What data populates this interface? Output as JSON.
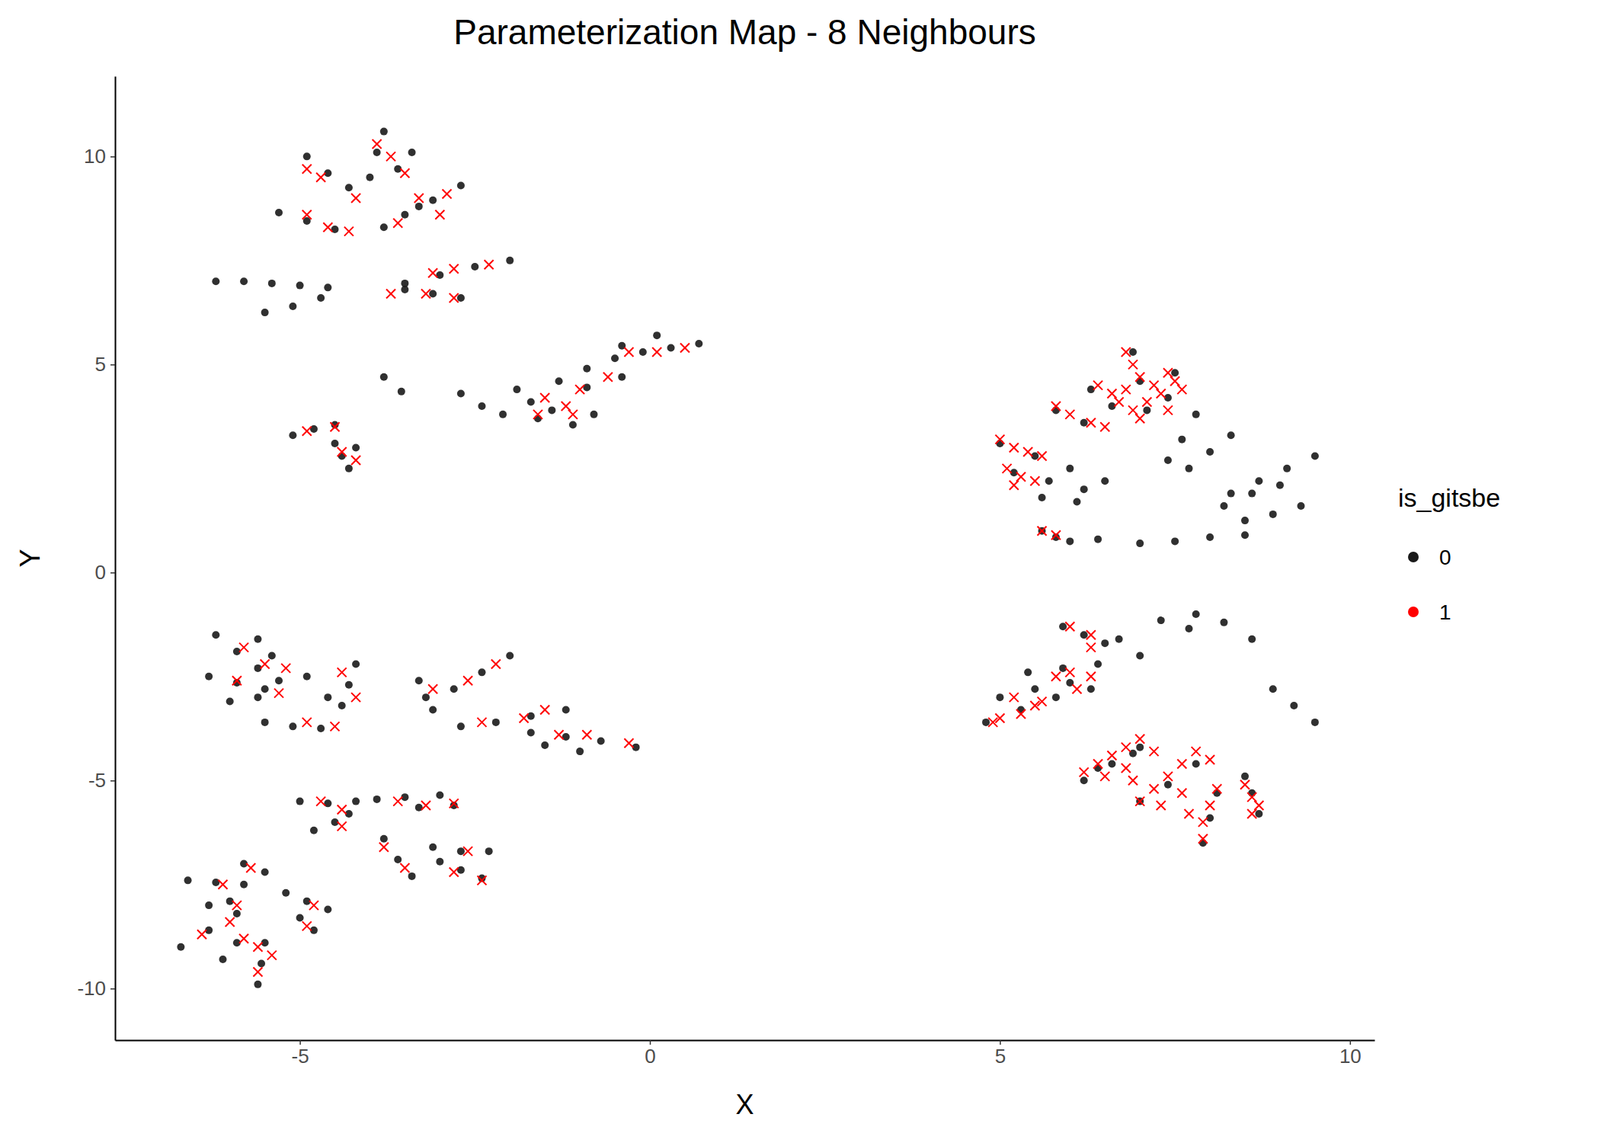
{
  "chart_data": {
    "type": "scatter",
    "title": "Parameterization Map - 8 Neighbours",
    "x_label": "X",
    "y_label": "Y",
    "legend_title": "is_gitsbe",
    "legend": "right",
    "grid": false,
    "xlim": [
      -7.64,
      10.35
    ],
    "ylim": [
      -11.24,
      11.93
    ],
    "xticks": [
      -5,
      0,
      5,
      10
    ],
    "yticks": [
      -10,
      -5,
      0,
      5,
      10
    ],
    "series": [
      {
        "name": "0",
        "color": "#1a1a1a",
        "marker": "circle",
        "x": [
          -6.2,
          -5.8,
          -5.4,
          -5.0,
          -4.6,
          -5.5,
          -5.1,
          -4.7,
          -5.3,
          -4.9,
          -4.5,
          -4.9,
          -4.6,
          -4.3,
          -3.8,
          -3.9,
          -4.0,
          -3.4,
          -3.6,
          -2.7,
          -3.1,
          -3.5,
          -3.3,
          -3.8,
          -2.0,
          -2.5,
          -3.0,
          -3.5,
          -2.7,
          -3.1,
          -3.5,
          -5.1,
          -4.8,
          -4.5,
          -4.4,
          -4.2,
          -4.3,
          -4.5,
          -3.8,
          -3.55,
          -2.7,
          -2.4,
          -2.1,
          0.7,
          0.3,
          -0.1,
          -0.5,
          -0.9,
          -1.3,
          0.1,
          -0.4,
          -0.4,
          -0.9,
          -0.8,
          -1.1,
          -1.4,
          -1.7,
          -1.6,
          -1.9,
          -6.2,
          -5.9,
          -5.6,
          -5.3,
          -6.3,
          -5.9,
          -5.5,
          -5.6,
          -5.4,
          -6.0,
          -5.6,
          -5.5,
          -5.1,
          -4.7,
          -4.2,
          -4.3,
          -4.4,
          -4.9,
          -4.6,
          -3.3,
          -3.2,
          -3.1,
          -2.0,
          -2.4,
          -2.8,
          -1.2,
          -1.7,
          -2.2,
          -2.7,
          -0.2,
          -0.7,
          -1.2,
          -1.7,
          -1.0,
          -1.5,
          -5.0,
          -4.6,
          -4.2,
          -4.8,
          -4.5,
          -4.3,
          -3.0,
          -3.5,
          -3.9,
          -2.8,
          -3.3,
          -3.8,
          -3.6,
          -3.4,
          -2.3,
          -2.7,
          -3.1,
          -2.4,
          -2.7,
          -3.0,
          -6.7,
          -6.3,
          -5.9,
          -6.6,
          -6.2,
          -5.8,
          -5.8,
          -5.5,
          -5.6,
          -5.55,
          -5.5,
          -4.6,
          -4.9,
          -5.2,
          -4.8,
          -5.0,
          -6.1,
          -5.9,
          -6.3,
          -6.0,
          9.5,
          9.1,
          8.7,
          8.3,
          9.0,
          8.6,
          8.2,
          8.3,
          8.0,
          7.7,
          7.8,
          7.6,
          7.4,
          9.3,
          8.9,
          8.5,
          8.5,
          8.0,
          7.5,
          7.0,
          6.0,
          6.4,
          5.0,
          5.5,
          6.0,
          6.5,
          5.2,
          5.7,
          6.2,
          5.6,
          6.1,
          6.9,
          7.0,
          7.1,
          7.5,
          7.4,
          6.3,
          6.6,
          5.8,
          6.2,
          5.6,
          5.8,
          5.9,
          6.2,
          6.5,
          7.8,
          8.2,
          8.6,
          7.3,
          7.7,
          9.5,
          9.2,
          8.9,
          4.8,
          5.3,
          5.8,
          6.3,
          5.0,
          5.5,
          6.0,
          5.4,
          5.9,
          6.4,
          6.2,
          6.6,
          7.0,
          6.4,
          6.9,
          7.0,
          7.4,
          7.8,
          7.9,
          8.0,
          8.1,
          8.7,
          8.6,
          8.5,
          6.7,
          7.0
        ],
        "values": [
          7.0,
          7.0,
          6.95,
          6.9,
          6.85,
          6.25,
          6.4,
          6.6,
          8.65,
          8.45,
          8.25,
          10.0,
          9.6,
          9.25,
          10.6,
          10.1,
          9.5,
          10.1,
          9.7,
          9.3,
          8.95,
          8.6,
          8.8,
          8.3,
          7.5,
          7.35,
          7.15,
          6.95,
          6.6,
          6.7,
          6.8,
          3.3,
          3.45,
          3.55,
          2.8,
          3.0,
          2.5,
          3.1,
          4.7,
          4.35,
          4.3,
          4.0,
          3.8,
          5.5,
          5.4,
          5.3,
          5.15,
          4.9,
          4.6,
          5.7,
          5.45,
          4.7,
          4.45,
          3.8,
          3.55,
          3.9,
          4.1,
          3.7,
          4.4,
          -1.5,
          -1.9,
          -2.3,
          -2.6,
          -2.5,
          -2.65,
          -2.8,
          -1.6,
          -2.0,
          -3.1,
          -3.0,
          -3.6,
          -3.7,
          -3.75,
          -2.2,
          -2.7,
          -3.2,
          -2.5,
          -3.0,
          -2.6,
          -3.0,
          -3.3,
          -2.0,
          -2.4,
          -2.8,
          -3.3,
          -3.45,
          -3.6,
          -3.7,
          -4.2,
          -4.05,
          -3.95,
          -3.85,
          -4.3,
          -4.15,
          -5.5,
          -5.55,
          -5.5,
          -6.2,
          -6.0,
          -5.8,
          -5.35,
          -5.4,
          -5.45,
          -5.6,
          -5.65,
          -6.4,
          -6.9,
          -7.3,
          -6.7,
          -6.7,
          -6.6,
          -7.35,
          -7.15,
          -6.95,
          -9.0,
          -8.6,
          -8.2,
          -7.4,
          -7.45,
          -7.5,
          -7.0,
          -7.2,
          -9.9,
          -9.4,
          -8.9,
          -8.1,
          -7.9,
          -7.7,
          -8.6,
          -8.3,
          -9.3,
          -8.9,
          -8.0,
          -7.9,
          2.8,
          2.5,
          2.2,
          1.9,
          2.1,
          1.9,
          1.6,
          3.3,
          2.9,
          2.5,
          3.8,
          3.2,
          2.7,
          1.6,
          1.4,
          1.25,
          0.9,
          0.85,
          0.75,
          0.7,
          0.75,
          0.8,
          3.1,
          2.8,
          2.5,
          2.2,
          2.4,
          2.2,
          2.0,
          1.8,
          1.7,
          5.3,
          4.6,
          3.9,
          4.8,
          4.2,
          4.4,
          4.0,
          3.9,
          3.6,
          1.0,
          0.85,
          -1.3,
          -1.5,
          -1.7,
          -1.0,
          -1.2,
          -1.6,
          -1.15,
          -1.35,
          -3.6,
          -3.2,
          -2.8,
          -3.6,
          -3.3,
          -3.0,
          -2.8,
          -3.0,
          -2.8,
          -2.65,
          -2.4,
          -2.3,
          -2.2,
          -5.0,
          -4.6,
          -4.2,
          -4.7,
          -4.35,
          -5.5,
          -5.1,
          -4.6,
          -6.5,
          -5.9,
          -5.3,
          -5.8,
          -5.3,
          -4.9,
          -1.6,
          -2.0
        ]
      },
      {
        "name": "1",
        "color": "#ff0000",
        "marker": "x",
        "x": [
          -4.9,
          -4.7,
          -4.2,
          -3.9,
          -3.7,
          -3.5,
          -3.3,
          -2.9,
          -3.0,
          -3.6,
          -4.9,
          -4.6,
          -4.3,
          -2.3,
          -2.8,
          -3.1,
          -2.8,
          -3.2,
          -3.7,
          -4.9,
          -4.5,
          -4.4,
          -4.2,
          0.5,
          0.1,
          -0.3,
          -0.6,
          -1.0,
          -1.1,
          -1.5,
          -1.6,
          -1.2,
          -5.8,
          -5.5,
          -5.2,
          -5.9,
          -5.3,
          -4.9,
          -4.5,
          -4.4,
          -4.2,
          -3.1,
          -2.2,
          -2.6,
          -1.8,
          -2.4,
          -1.3,
          -0.9,
          -0.3,
          -1.5,
          -4.7,
          -4.4,
          -4.4,
          -3.6,
          -3.2,
          -2.8,
          -3.8,
          -3.5,
          -2.6,
          -2.8,
          -2.4,
          -6.4,
          -6.0,
          -5.9,
          -6.1,
          -5.7,
          -5.6,
          -5.6,
          -5.4,
          -4.8,
          -4.9,
          -5.8,
          6.8,
          6.9,
          7.0,
          6.8,
          7.2,
          7.4,
          7.5,
          7.3,
          7.1,
          6.4,
          6.6,
          6.7,
          6.9,
          5.8,
          6.0,
          6.3,
          6.5,
          7.4,
          7.0,
          5.0,
          5.2,
          5.4,
          5.6,
          5.1,
          5.3,
          5.5,
          5.2,
          5.6,
          5.8,
          7.6,
          6.0,
          6.3,
          6.3,
          5.0,
          4.9,
          5.3,
          5.5,
          5.2,
          5.6,
          5.8,
          6.0,
          6.3,
          6.1,
          6.2,
          6.4,
          6.6,
          6.8,
          7.0,
          6.5,
          6.8,
          7.2,
          6.9,
          7.0,
          7.2,
          7.4,
          7.6,
          7.8,
          7.3,
          7.6,
          8.0,
          7.9,
          7.9,
          8.0,
          8.1,
          7.7,
          8.6,
          8.6,
          8.5,
          8.7
        ],
        "values": [
          9.7,
          9.5,
          9.0,
          10.3,
          10.0,
          9.6,
          9.0,
          9.1,
          8.6,
          8.4,
          8.6,
          8.3,
          8.2,
          7.4,
          7.3,
          7.2,
          6.6,
          6.7,
          6.7,
          3.4,
          3.5,
          2.9,
          2.7,
          5.4,
          5.3,
          5.3,
          4.7,
          4.4,
          3.8,
          4.2,
          3.8,
          4.0,
          -1.8,
          -2.2,
          -2.3,
          -2.6,
          -2.9,
          -3.6,
          -3.7,
          -2.4,
          -3.0,
          -2.8,
          -2.2,
          -2.6,
          -3.5,
          -3.6,
          -3.9,
          -3.9,
          -4.1,
          -3.3,
          -5.5,
          -5.7,
          -6.1,
          -5.5,
          -5.6,
          -5.55,
          -6.6,
          -7.1,
          -6.7,
          -7.2,
          -7.4,
          -8.7,
          -8.4,
          -8.0,
          -7.5,
          -7.1,
          -9.6,
          -9.0,
          -9.2,
          -8.0,
          -8.5,
          -8.8,
          5.3,
          5.0,
          4.7,
          4.4,
          4.5,
          4.8,
          4.6,
          4.3,
          4.1,
          4.5,
          4.3,
          4.1,
          3.9,
          4.0,
          3.8,
          3.6,
          3.5,
          3.9,
          3.7,
          3.2,
          3.0,
          2.9,
          2.8,
          2.5,
          2.3,
          2.2,
          2.1,
          1.0,
          0.9,
          4.4,
          -1.3,
          -1.5,
          -1.8,
          -3.5,
          -3.6,
          -3.4,
          -3.2,
          -3.0,
          -3.1,
          -2.5,
          -2.4,
          -2.5,
          -2.8,
          -4.8,
          -4.6,
          -4.4,
          -4.2,
          -4.0,
          -4.9,
          -4.7,
          -4.3,
          -5.0,
          -5.5,
          -5.2,
          -4.9,
          -4.6,
          -4.3,
          -5.6,
          -5.3,
          -4.5,
          -6.4,
          -6.0,
          -5.6,
          -5.2,
          -5.8,
          -5.8,
          -5.4,
          -5.1,
          -5.6
        ]
      }
    ]
  }
}
